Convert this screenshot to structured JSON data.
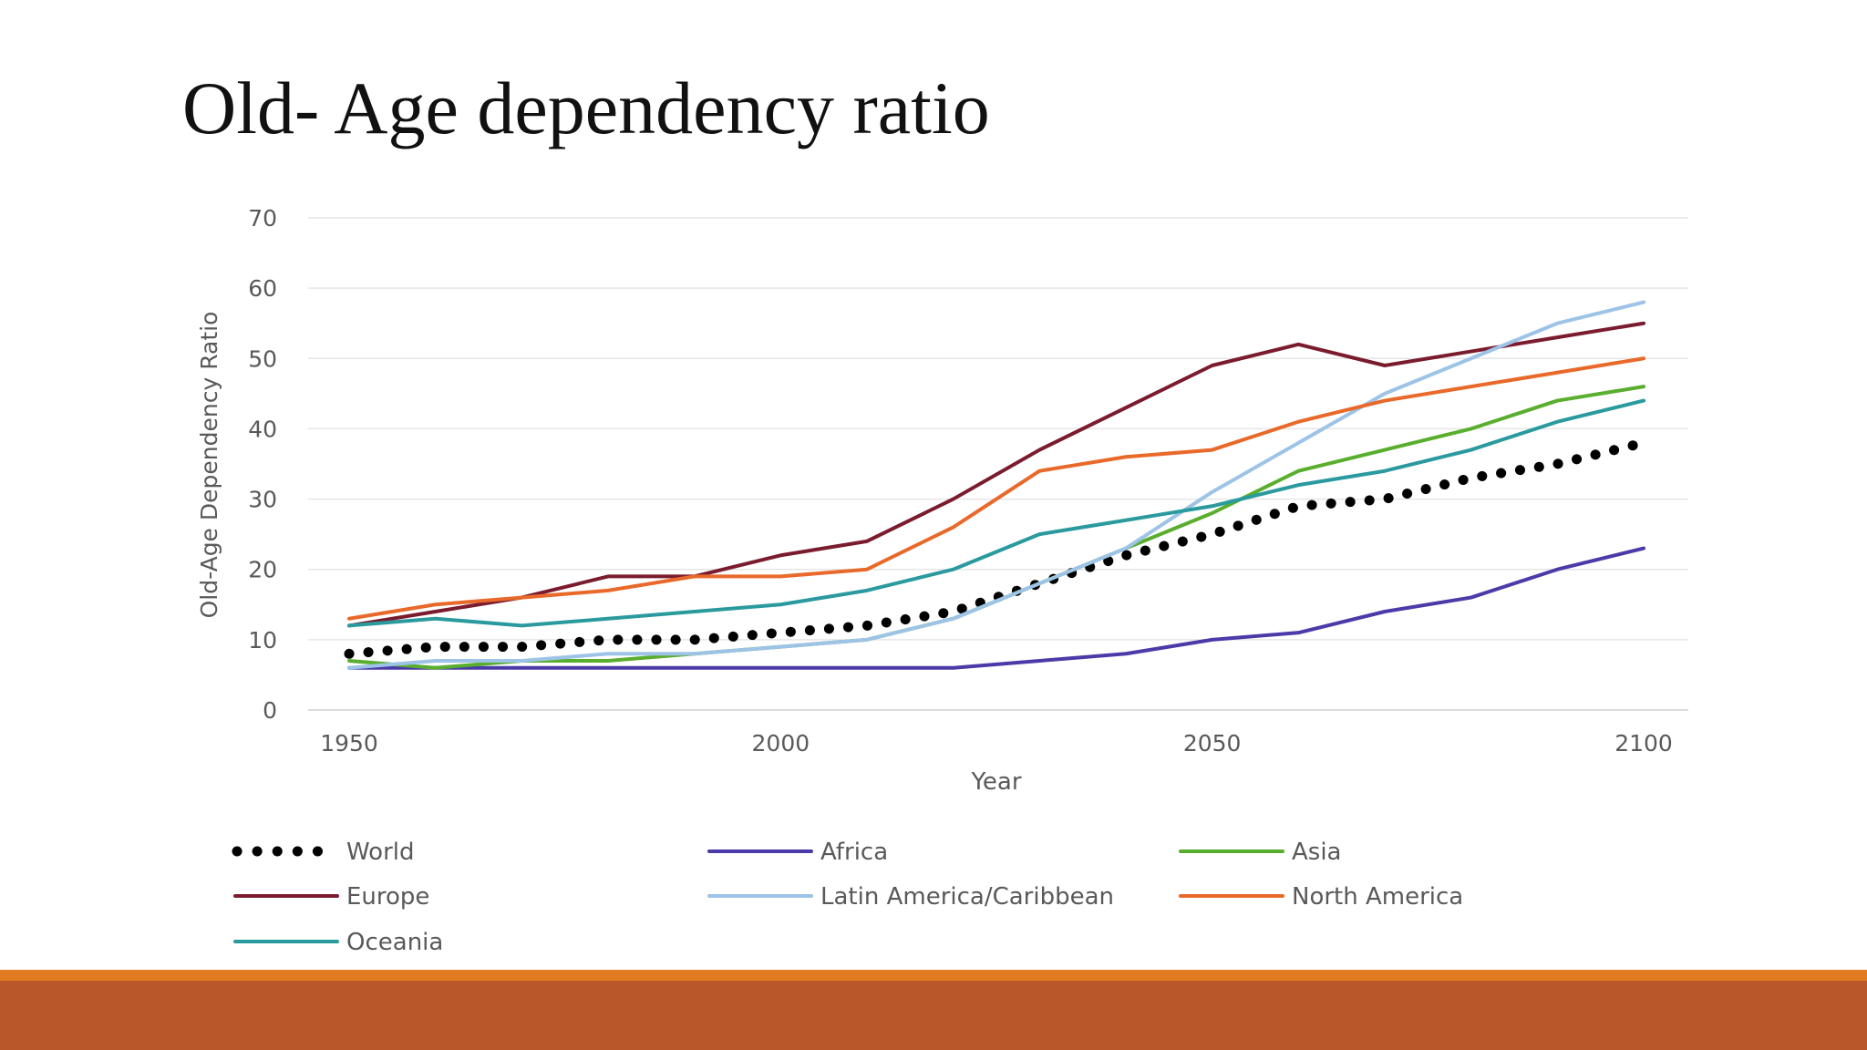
{
  "slide": {
    "title": "Old- Age dependency ratio",
    "colors": {
      "background": "#ffffff",
      "footer_thin": "#E07B21",
      "footer_thick": "#B9562A"
    }
  },
  "chart_data": {
    "type": "line",
    "title": "",
    "xlabel": "Year",
    "ylabel": "Old-Age Dependency Ratio",
    "xlim": [
      1950,
      2100
    ],
    "ylim": [
      0,
      70
    ],
    "xticks": [
      1950,
      2000,
      2050,
      2100
    ],
    "yticks": [
      0,
      10,
      20,
      30,
      40,
      50,
      60,
      70
    ],
    "grid": true,
    "legend_position": "bottom",
    "x": [
      1950,
      1960,
      1970,
      1980,
      1990,
      2000,
      2010,
      2020,
      2030,
      2040,
      2050,
      2060,
      2070,
      2080,
      2090,
      2100
    ],
    "series": [
      {
        "name": "World",
        "color": "#000000",
        "style": "dotted",
        "values": [
          8,
          9,
          9,
          10,
          10,
          11,
          12,
          14,
          18,
          22,
          25,
          29,
          30,
          33,
          35,
          38
        ]
      },
      {
        "name": "Africa",
        "color": "#4B3BA8",
        "style": "solid",
        "values": [
          6,
          6,
          6,
          6,
          6,
          6,
          6,
          6,
          7,
          8,
          10,
          11,
          14,
          16,
          20,
          23
        ]
      },
      {
        "name": "Asia",
        "color": "#5AAE2E",
        "style": "solid",
        "values": [
          7,
          6,
          7,
          7,
          8,
          9,
          10,
          13,
          18,
          23,
          28,
          34,
          37,
          40,
          44,
          46
        ]
      },
      {
        "name": "Europe",
        "color": "#7B1C2E",
        "style": "solid",
        "values": [
          12,
          14,
          16,
          19,
          19,
          22,
          24,
          30,
          37,
          43,
          49,
          52,
          49,
          51,
          53,
          55
        ]
      },
      {
        "name": "Latin America/Caribbean",
        "color": "#9DC3E6",
        "style": "solid",
        "values": [
          6,
          7,
          7,
          8,
          8,
          9,
          10,
          13,
          18,
          23,
          31,
          38,
          45,
          50,
          55,
          58
        ]
      },
      {
        "name": "North America",
        "color": "#E8692A",
        "style": "solid",
        "values": [
          13,
          15,
          16,
          17,
          19,
          19,
          20,
          26,
          34,
          36,
          37,
          41,
          44,
          46,
          48,
          50
        ]
      },
      {
        "name": "Oceania",
        "color": "#2A9A9E",
        "style": "solid",
        "values": [
          12,
          13,
          12,
          13,
          14,
          15,
          17,
          20,
          25,
          27,
          29,
          32,
          34,
          37,
          41,
          44
        ]
      }
    ]
  }
}
